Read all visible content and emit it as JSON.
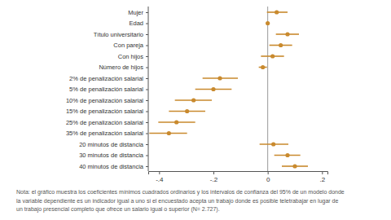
{
  "chart_data": {
    "type": "coefficient",
    "orientation": "horizontal",
    "color": "#c98a2e",
    "categories": [
      "Mujer",
      "Edad",
      "Título universitario",
      "Con pareja",
      "Con hijos",
      "Número de hijos",
      "2% de penalización salarial",
      "5% de penalización salarial",
      "10% de penalización salarial",
      "15% de penalización salarial",
      "25% de penalización salarial",
      "35% de penalización salarial",
      "20 minutos de distancia",
      "30 minutos de distancia",
      "40 minutos de distancia"
    ],
    "values": [
      0.033,
      0.0,
      0.073,
      0.048,
      0.018,
      -0.018,
      -0.176,
      -0.2,
      -0.273,
      -0.297,
      -0.336,
      -0.364,
      0.021,
      0.073,
      0.1
    ],
    "ci_lower": [
      -0.003,
      -0.002,
      0.03,
      0.006,
      -0.025,
      -0.033,
      -0.24,
      -0.267,
      -0.342,
      -0.364,
      -0.403,
      -0.436,
      -0.03,
      0.024,
      0.052
    ],
    "ci_upper": [
      0.073,
      0.002,
      0.115,
      0.09,
      0.06,
      -0.003,
      -0.11,
      -0.133,
      -0.206,
      -0.23,
      -0.267,
      -0.297,
      0.076,
      0.12,
      0.148
    ],
    "xlim": [
      -0.44,
      0.22
    ],
    "xticks": [
      {
        "value": -0.4,
        "label": "-.4"
      },
      {
        "value": -0.2,
        "label": "-.2"
      },
      0,
      {
        "value": 0.2,
        "label": ".2"
      }
    ],
    "note": [
      "Nota: el gráfico muestra los coeficientes mínimos cuadrados ordinarios y los intervalos de confianza del 95% de un modelo donde",
      "la variable dependiente es un indicador igual a uno si el encuestado acepta un trabajo donde es posible teletrabajar en lugar de",
      "un trabajo presencial completo que ofrece un salario igual o superior (N= 2.727)."
    ]
  }
}
